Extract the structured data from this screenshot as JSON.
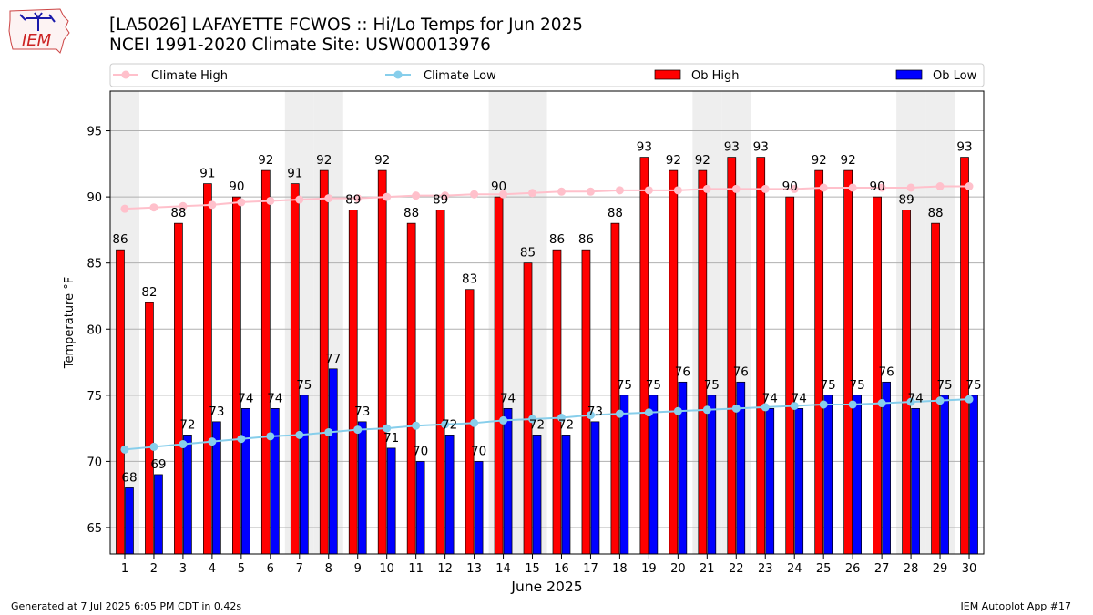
{
  "header": {
    "logo_text": "IEM",
    "title_line1": "[LA5026] LAFAYETTE FCWOS :: Hi/Lo Temps for Jun 2025",
    "title_line2": "NCEI 1991-2020 Climate Site: USW00013976"
  },
  "footer": {
    "generated": "Generated at 7 Jul 2025 6:05 PM CDT in 0.42s",
    "app": "IEM Autoplot App #17"
  },
  "colors": {
    "ob_high": "#ff0000",
    "ob_low": "#0000ff",
    "climate_high": "#ffc0cb",
    "climate_low": "#87ceeb",
    "weekend_shade": "#eeeeee"
  },
  "chart_data": {
    "type": "bar",
    "xlabel": "June 2025",
    "ylabel": "Temperature °F",
    "ylim": [
      63,
      98
    ],
    "yticks": [
      65,
      70,
      75,
      80,
      85,
      90,
      95
    ],
    "grid": true,
    "legend_position": "top",
    "categories": [
      "1",
      "2",
      "3",
      "4",
      "5",
      "6",
      "7",
      "8",
      "9",
      "10",
      "11",
      "12",
      "13",
      "14",
      "15",
      "16",
      "17",
      "18",
      "19",
      "20",
      "21",
      "22",
      "23",
      "24",
      "25",
      "26",
      "27",
      "28",
      "29",
      "30"
    ],
    "shaded_days": [
      1,
      7,
      8,
      14,
      15,
      21,
      22,
      28,
      29
    ],
    "series": [
      {
        "name": "Ob High",
        "kind": "bar",
        "values": [
          86,
          82,
          88,
          91,
          90,
          92,
          91,
          92,
          89,
          92,
          88,
          89,
          83,
          90,
          85,
          86,
          86,
          88,
          93,
          92,
          92,
          93,
          93,
          90,
          92,
          92,
          90,
          89,
          88,
          93
        ]
      },
      {
        "name": "Ob Low",
        "kind": "bar",
        "values": [
          68,
          69,
          72,
          73,
          74,
          74,
          75,
          77,
          73,
          71,
          70,
          72,
          70,
          74,
          72,
          72,
          73,
          75,
          75,
          76,
          75,
          76,
          74,
          74,
          75,
          75,
          76,
          74,
          75,
          75
        ]
      },
      {
        "name": "Climate High",
        "kind": "line",
        "values": [
          89.1,
          89.2,
          89.3,
          89.4,
          89.6,
          89.7,
          89.8,
          89.9,
          89.9,
          90.0,
          90.1,
          90.1,
          90.2,
          90.2,
          90.3,
          90.4,
          90.4,
          90.5,
          90.5,
          90.5,
          90.6,
          90.6,
          90.6,
          90.6,
          90.7,
          90.7,
          90.7,
          90.7,
          90.8,
          90.8
        ]
      },
      {
        "name": "Climate Low",
        "kind": "line",
        "values": [
          70.9,
          71.1,
          71.3,
          71.5,
          71.7,
          71.9,
          72.0,
          72.2,
          72.4,
          72.5,
          72.7,
          72.8,
          72.9,
          73.1,
          73.2,
          73.3,
          73.5,
          73.6,
          73.7,
          73.8,
          73.9,
          74.0,
          74.1,
          74.2,
          74.3,
          74.3,
          74.4,
          74.5,
          74.6,
          74.7
        ]
      }
    ]
  }
}
